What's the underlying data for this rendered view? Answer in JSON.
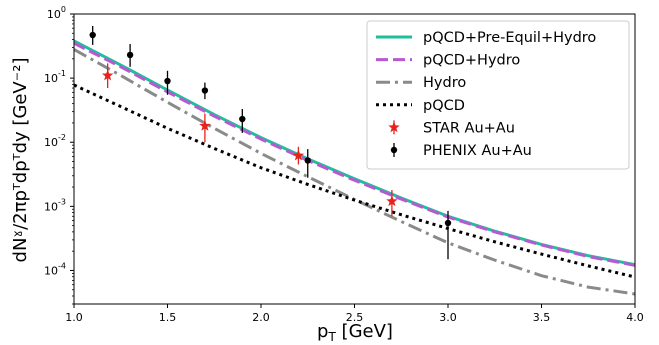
{
  "chart_data": {
    "type": "line",
    "xlabel": "pᵀ [GeV]",
    "xlabel_main": "p",
    "xlabel_sub": "T",
    "xlabel_unit": " [GeV]",
    "ylabel": "dNˠ/2πpᵀdpᵀdy [GeV⁻²]",
    "xlim": [
      1.0,
      4.0
    ],
    "ylim": [
      3e-05,
      1.0
    ],
    "yscale": "log",
    "legend_position": "top-right",
    "x_ticks": [
      "1.0",
      "1.5",
      "2.0",
      "2.5",
      "3.0",
      "3.5",
      "4.0"
    ],
    "y_ticks": [
      {
        "base": "10",
        "exp": "-4",
        "value": 0.0001
      },
      {
        "base": "10",
        "exp": "-3",
        "value": 0.001
      },
      {
        "base": "10",
        "exp": "-2",
        "value": 0.01
      },
      {
        "base": "10",
        "exp": "-1",
        "value": 0.1
      },
      {
        "base": "10",
        "exp": "0",
        "value": 1
      }
    ],
    "series": [
      {
        "name": "pQCD+Pre-Equil+Hydro",
        "kind": "line",
        "style": "solid",
        "color": "#1fbf9b",
        "x": [
          1.0,
          1.25,
          1.5,
          1.75,
          2.0,
          2.25,
          2.5,
          2.75,
          3.0,
          3.25,
          3.5,
          3.75,
          4.0
        ],
        "y": [
          0.38,
          0.16,
          0.065,
          0.027,
          0.0118,
          0.0055,
          0.0027,
          0.00135,
          0.0007,
          0.00041,
          0.000255,
          0.00017,
          0.000123
        ]
      },
      {
        "name": "pQCD+Hydro",
        "kind": "line",
        "style": "dashed",
        "color": "#b45bd1",
        "x": [
          1.0,
          1.25,
          1.5,
          1.75,
          2.0,
          2.25,
          2.5,
          2.75,
          3.0,
          3.25,
          3.5,
          3.75,
          4.0
        ],
        "y": [
          0.35,
          0.15,
          0.061,
          0.0255,
          0.0112,
          0.0052,
          0.00255,
          0.0013,
          0.00068,
          0.0004,
          0.00025,
          0.000165,
          0.00012
        ]
      },
      {
        "name": "Hydro",
        "kind": "line",
        "style": "dashdot",
        "color": "#8a8a8a",
        "x": [
          1.0,
          1.25,
          1.5,
          1.75,
          2.0,
          2.25,
          2.5,
          2.75,
          3.0,
          3.25,
          3.5,
          3.75,
          4.0
        ],
        "y": [
          0.28,
          0.11,
          0.042,
          0.0165,
          0.0067,
          0.0029,
          0.00128,
          0.00058,
          0.00027,
          0.000145,
          8.3e-05,
          5.5e-05,
          4.3e-05
        ]
      },
      {
        "name": "pQCD",
        "kind": "line",
        "style": "dotted",
        "color": "#000000",
        "x": [
          1.0,
          1.25,
          1.5,
          1.75,
          2.0,
          2.25,
          2.5,
          2.75,
          3.0,
          3.25,
          3.5,
          3.75,
          4.0
        ],
        "y": [
          0.078,
          0.036,
          0.0165,
          0.008,
          0.004,
          0.0022,
          0.00125,
          0.00074,
          0.00045,
          0.00028,
          0.00018,
          0.000118,
          7.9e-05
        ]
      },
      {
        "name": "STAR Au+Au",
        "kind": "points",
        "marker": "star",
        "color": "#e8211c",
        "points": [
          {
            "x": 1.18,
            "y": 0.11,
            "ylo": 0.07,
            "yhi": 0.17
          },
          {
            "x": 1.7,
            "y": 0.018,
            "ylo": 0.01,
            "yhi": 0.028
          },
          {
            "x": 2.2,
            "y": 0.0062,
            "ylo": 0.0045,
            "yhi": 0.0085
          },
          {
            "x": 2.7,
            "y": 0.0012,
            "ylo": 0.0007,
            "yhi": 0.0018
          }
        ]
      },
      {
        "name": "PHENIX Au+Au",
        "kind": "points",
        "marker": "circle",
        "color": "#000000",
        "points": [
          {
            "x": 1.1,
            "y": 0.47,
            "ylo": 0.33,
            "yhi": 0.65
          },
          {
            "x": 1.3,
            "y": 0.23,
            "ylo": 0.15,
            "yhi": 0.34
          },
          {
            "x": 1.5,
            "y": 0.09,
            "ylo": 0.055,
            "yhi": 0.13
          },
          {
            "x": 1.7,
            "y": 0.064,
            "ylo": 0.047,
            "yhi": 0.085
          },
          {
            "x": 1.9,
            "y": 0.023,
            "ylo": 0.014,
            "yhi": 0.033
          },
          {
            "x": 2.25,
            "y": 0.0052,
            "ylo": 0.0028,
            "yhi": 0.0078
          },
          {
            "x": 3.0,
            "y": 0.00055,
            "ylo": 0.00015,
            "yhi": 0.00085
          }
        ]
      }
    ]
  }
}
